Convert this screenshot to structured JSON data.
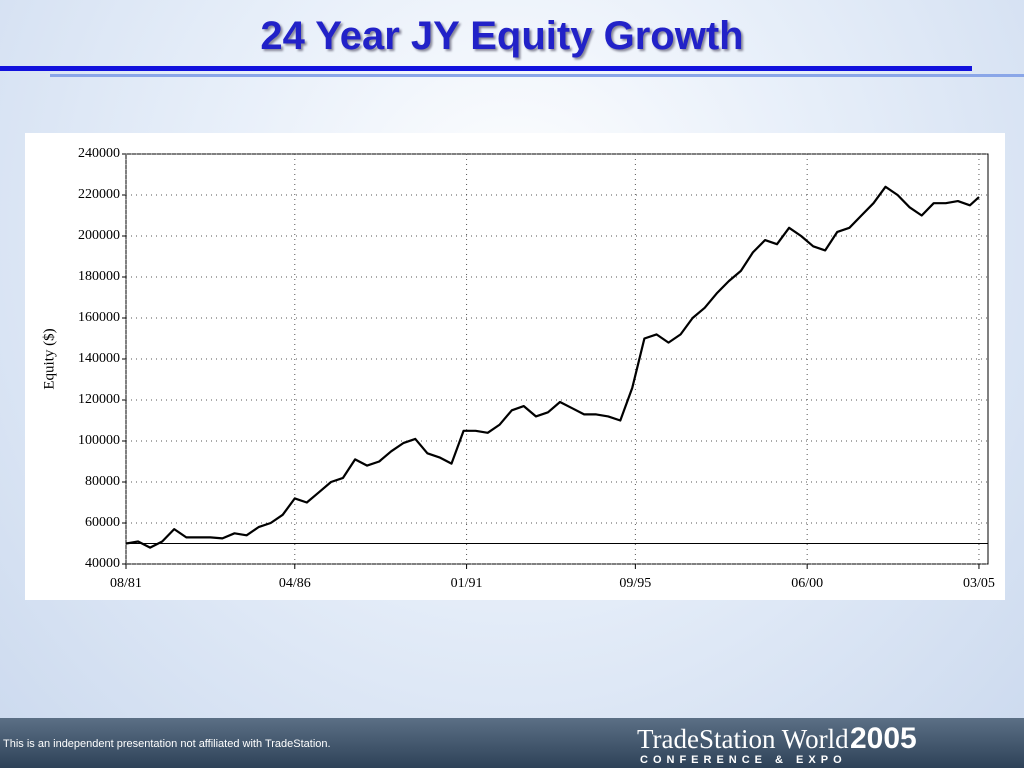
{
  "chart_data": {
    "type": "line",
    "title": "24 Year JY Equity Growth",
    "y_label": "Equity ($)",
    "x": [
      "08/81",
      "12/81",
      "04/82",
      "08/82",
      "12/82",
      "04/83",
      "08/83",
      "12/83",
      "04/84",
      "08/84",
      "12/84",
      "04/85",
      "08/85",
      "12/85",
      "04/86",
      "08/86",
      "12/86",
      "04/87",
      "08/87",
      "12/87",
      "04/88",
      "08/88",
      "12/88",
      "04/89",
      "08/89",
      "12/89",
      "04/90",
      "08/90",
      "12/90",
      "04/91",
      "08/91",
      "12/91",
      "04/92",
      "08/92",
      "12/92",
      "04/93",
      "08/93",
      "12/93",
      "04/94",
      "08/94",
      "12/94",
      "04/95",
      "08/95",
      "12/95",
      "04/96",
      "08/96",
      "12/96",
      "04/97",
      "08/97",
      "12/97",
      "04/98",
      "08/98",
      "12/98",
      "04/99",
      "08/99",
      "12/99",
      "04/00",
      "08/00",
      "12/00",
      "04/01",
      "08/01",
      "12/01",
      "04/02",
      "08/02",
      "12/02",
      "04/03",
      "08/03",
      "12/03",
      "04/04",
      "08/04",
      "12/04",
      "03/05"
    ],
    "values": [
      50000,
      51000,
      48000,
      51000,
      57000,
      53000,
      53000,
      53000,
      52500,
      55000,
      54000,
      58000,
      60000,
      64000,
      72000,
      70000,
      75000,
      80000,
      82000,
      91000,
      88000,
      90000,
      95000,
      99000,
      101000,
      94000,
      92000,
      89000,
      105000,
      105000,
      104000,
      108000,
      115000,
      117000,
      112000,
      114000,
      119000,
      116000,
      113000,
      113000,
      112000,
      110000,
      126000,
      150000,
      152000,
      148000,
      152000,
      160000,
      165000,
      172000,
      178000,
      183000,
      192000,
      198000,
      196000,
      204000,
      200000,
      195000,
      193000,
      202000,
      204000,
      210000,
      216000,
      224000,
      220000,
      214000,
      210000,
      216000,
      216000,
      217000,
      215000,
      219000
    ],
    "color": "#000000",
    "baseline": 50000,
    "xlim": [
      "08/81",
      "06/05"
    ],
    "xticks": [
      "08/81",
      "04/86",
      "01/91",
      "09/95",
      "06/00",
      "03/05"
    ],
    "ylim": [
      40000,
      240000
    ],
    "yticks": [
      40000,
      60000,
      80000,
      100000,
      120000,
      140000,
      160000,
      180000,
      200000,
      220000,
      240000
    ],
    "grid": true
  },
  "footer": {
    "disclaimer": "This is an independent presentation not affiliated with TradeStation.",
    "logo_name": "TradeStation World",
    "logo_year": "2005",
    "logo_subtitle": "CONFERENCE & EXPO"
  }
}
